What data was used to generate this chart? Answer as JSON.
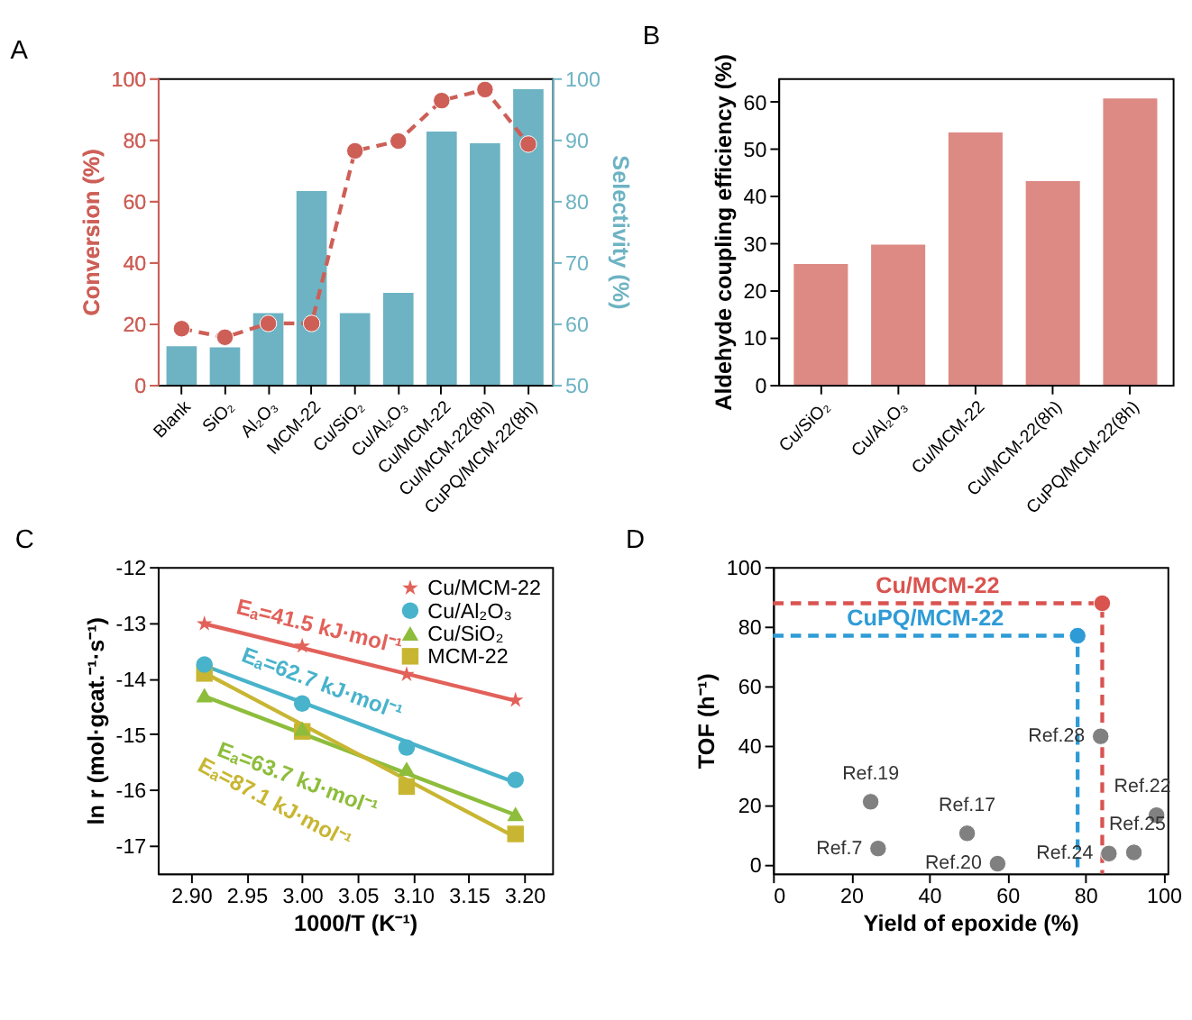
{
  "chart_data": [
    {
      "type": "bar",
      "title": "A",
      "categories": [
        "Blank",
        "SiO₂",
        "Al₂O₃",
        "MCM-22",
        "Cu/SiO₂",
        "Cu/Al₂O₃",
        "Cu/MCM-22",
        "Cu/MCM-22(8h)",
        "CuPQ/MCM-22(8h)"
      ],
      "ylabel": "Conversion (%)",
      "y2label": "Selectivity (%)",
      "ylim": [
        0,
        100
      ],
      "yticks": [
        0,
        20,
        40,
        60,
        80,
        100
      ],
      "y2lim": [
        50,
        100
      ],
      "y2ticks": [
        50,
        60,
        70,
        80,
        90,
        100
      ],
      "series": [
        {
          "type": "bar",
          "axis": "y2",
          "color": "#6db3c3",
          "values": [
            56.3,
            56.1,
            61.7,
            81.6,
            61.7,
            65.0,
            91.3,
            89.4,
            98.2
          ]
        },
        {
          "type": "line",
          "color": "#cd5f57",
          "marker": "circle",
          "line_style": "dashed",
          "values": [
            18.3,
            15.5,
            20.0,
            20.0,
            76.3,
            79.5,
            92.7,
            96.3,
            78.5
          ]
        }
      ]
    },
    {
      "type": "bar",
      "title": "B",
      "categories": [
        "Cu/SiO₂",
        "Cu/Al₂O₃",
        "Cu/MCM-22",
        "Cu/MCM-22(8h)",
        "CuPQ/MCM-22(8h)"
      ],
      "ylabel": "Aldehyde coupling efficiency (%)",
      "ylim": [
        0,
        65
      ],
      "yticks": [
        0,
        10,
        20,
        30,
        40,
        50,
        60
      ],
      "color": "#dd8a84",
      "values": [
        25.6,
        29.7,
        53.5,
        43.2,
        60.7
      ]
    },
    {
      "type": "scatter",
      "title": "C",
      "xlabel": "1000/T (K⁻¹)",
      "ylabel": "ln r (mol·gcat.⁻¹·s⁻¹)",
      "xlim": [
        2.87,
        3.225
      ],
      "xticks": [
        {
          "value": 2.9,
          "label": "2.90"
        },
        2.95,
        {
          "value": 3.0,
          "label": "3.00"
        },
        3.05,
        {
          "value": 3.1,
          "label": "3.10"
        },
        3.15,
        {
          "value": 3.2,
          "label": "3.20"
        }
      ],
      "ylim": [
        -17.5,
        -12
      ],
      "yticks": [
        -17,
        -16,
        -15,
        -14,
        -13,
        -12
      ],
      "legend": "top right",
      "x": [
        2.912,
        3.0,
        3.094,
        3.192
      ],
      "series": [
        {
          "type": "scatter",
          "name": "Cu/MCM-22",
          "color": "#e2615a",
          "marker": "star",
          "values": [
            -13.02,
            -13.42,
            -13.93,
            -14.39
          ]
        },
        {
          "type": "scatter",
          "name": "Cu/Al₂O₃",
          "color": "#48b3cb",
          "marker": "circle",
          "values": [
            -13.75,
            -14.45,
            -15.24,
            -15.82
          ]
        },
        {
          "type": "scatter",
          "name": "Cu/SiO₂",
          "color": "#8dbd3b",
          "marker": "triangle",
          "values": [
            -14.3,
            -14.9,
            -15.62,
            -16.43
          ]
        },
        {
          "type": "scatter",
          "name": "MCM-22",
          "color": "#c8b632",
          "marker": "square",
          "values": [
            -13.91,
            -14.95,
            -15.94,
            -16.79
          ]
        },
        {
          "type": "line",
          "color": "#e2615a",
          "x": [
            2.912,
            3.192
          ],
          "values": [
            -13.02,
            -14.4
          ]
        },
        {
          "type": "line",
          "color": "#48b3cb",
          "x": [
            2.912,
            3.192
          ],
          "values": [
            -13.77,
            -15.87
          ]
        },
        {
          "type": "line",
          "color": "#8dbd3b",
          "x": [
            2.912,
            3.192
          ],
          "values": [
            -14.32,
            -16.45
          ]
        },
        {
          "type": "line",
          "color": "#c8b632",
          "x": [
            2.912,
            3.192
          ],
          "values": [
            -13.9,
            -16.85
          ]
        }
      ],
      "annotations": [
        {
          "text": "Eₐ=41.5 kJ·mol⁻¹",
          "x": 3.01,
          "y": -13.5
        },
        {
          "text": "Eₐ=62.7 kJ·mol⁻¹",
          "x": 3.01,
          "y": -14.51
        },
        {
          "text": "Eₐ=63.7 kJ·mol⁻¹",
          "x": 3.01,
          "y": -15.07
        },
        {
          "text": "Eₐ=87.1 kJ·mol⁻¹",
          "x": 3.01,
          "y": -14.93
        }
      ]
    },
    {
      "type": "scatter",
      "title": "D",
      "xlabel": "Yield of epoxide (%)",
      "ylabel": "TOF (h⁻¹)",
      "xlim": [
        0,
        101
      ],
      "xticks": [
        0,
        20,
        40,
        60,
        80,
        100
      ],
      "ylim": [
        -3,
        100
      ],
      "yticks": [
        0,
        20,
        40,
        60,
        80,
        100
      ],
      "series": [
        {
          "type": "line",
          "color": "#d9534f",
          "line_style": "dashed",
          "x": [
            0,
            84.3,
            84.3
          ],
          "values": [
            87.8,
            87.8,
            -3
          ]
        },
        {
          "type": "line",
          "color": "#2e9bd6",
          "line_style": "dashed",
          "x": [
            0,
            78.0,
            78.0
          ],
          "values": [
            76.9,
            76.9,
            -3
          ]
        },
        {
          "type": "scatter",
          "name": "Cu/MCM-22",
          "color": "#d9534f",
          "marker": "circle",
          "x": [
            84.3
          ],
          "values": [
            87.8
          ]
        },
        {
          "type": "scatter",
          "name": "CuPQ/MCM-22",
          "color": "#2e9bd6",
          "marker": "circle",
          "x": [
            78.0
          ],
          "values": [
            76.9
          ]
        },
        {
          "type": "scatter",
          "color": "#808080",
          "marker": "circle",
          "x": [
            25.0,
            26.9,
            49.7,
            57.5,
            83.9,
            86.0,
            92.4,
            98.2
          ],
          "values": [
            21.1,
            5.4,
            10.5,
            0.3,
            43.1,
            3.7,
            4.1,
            16.6
          ]
        }
      ],
      "annotations": [
        {
          "text": "Ref.19",
          "x": 25.0,
          "y": 21.1
        },
        {
          "text": "Ref.7",
          "x": 26.9,
          "y": 5.4
        },
        {
          "text": "Ref.17",
          "x": 49.7,
          "y": 10.5
        },
        {
          "text": "Ref.20",
          "x": 57.5,
          "y": 0.3
        },
        {
          "text": "Ref.28",
          "x": 83.9,
          "y": 43.1
        },
        {
          "text": "Ref.22",
          "x": 98.2,
          "y": 16.6
        },
        {
          "text": "Ref.25",
          "x": 92.4,
          "y": 4.1
        },
        {
          "text": "Ref.24",
          "x": 86.0,
          "y": 3.7
        }
      ]
    }
  ]
}
